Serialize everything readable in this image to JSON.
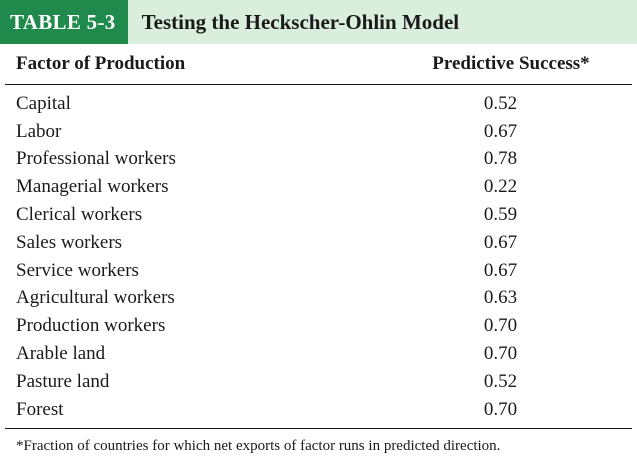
{
  "table": {
    "tag": "TABLE 5-3",
    "title": "Testing the Heckscher-Ohlin Model",
    "columns": {
      "factor": "Factor of Production",
      "success": "Predictive Success*"
    },
    "rows": [
      {
        "factor": "Capital",
        "success": "0.52"
      },
      {
        "factor": "Labor",
        "success": "0.67"
      },
      {
        "factor": "Professional workers",
        "success": "0.78"
      },
      {
        "factor": "Managerial workers",
        "success": "0.22"
      },
      {
        "factor": "Clerical workers",
        "success": "0.59"
      },
      {
        "factor": "Sales workers",
        "success": "0.67"
      },
      {
        "factor": "Service workers",
        "success": "0.67"
      },
      {
        "factor": "Agricultural workers",
        "success": "0.63"
      },
      {
        "factor": "Production workers",
        "success": "0.70"
      },
      {
        "factor": "Arable land",
        "success": "0.70"
      },
      {
        "factor": "Pasture land",
        "success": "0.52"
      },
      {
        "factor": "Forest",
        "success": "0.70"
      }
    ],
    "footnote": "*Fraction of countries for which net exports of factor runs in predicted direction."
  },
  "colors": {
    "tag_background": "#1f8a4c",
    "title_background": "#d9eedd"
  }
}
